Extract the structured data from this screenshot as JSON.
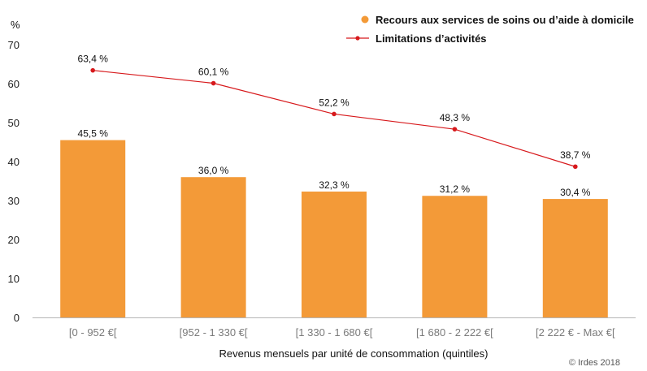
{
  "chart_data": {
    "type": "bar",
    "y_unit_label": "%",
    "xlabel": "Revenus mensuels par unité de consommation (quintiles)",
    "categories": [
      "[0 - 952 €[",
      "[952 - 1 330 €[",
      "[1 330 - 1 680 €[",
      "[1 680 - 2 222 €[",
      "[2 222 € - Max €["
    ],
    "ylim": [
      0,
      70
    ],
    "yticks": [
      0,
      10,
      20,
      30,
      40,
      50,
      60,
      70
    ],
    "grid": false,
    "legend_position": "top-right",
    "series": [
      {
        "name": "Recours aux services de soins ou d’aide à domicile",
        "type": "bar",
        "color": "#f39a38",
        "values": [
          45.5,
          36.0,
          32.3,
          31.2,
          30.4
        ],
        "labels": [
          "45,5 %",
          "36,0 %",
          "32,3 %",
          "31,2 %",
          "30,4 %"
        ]
      },
      {
        "name": "Limitations d’activités",
        "type": "line",
        "color": "#d7191c",
        "values": [
          63.4,
          60.1,
          52.2,
          48.3,
          38.7
        ],
        "labels": [
          "63,4 %",
          "60,1 %",
          "52,2 %",
          "48,3 %",
          "38,7 %"
        ]
      }
    ]
  },
  "credit": "© Irdes 2018"
}
